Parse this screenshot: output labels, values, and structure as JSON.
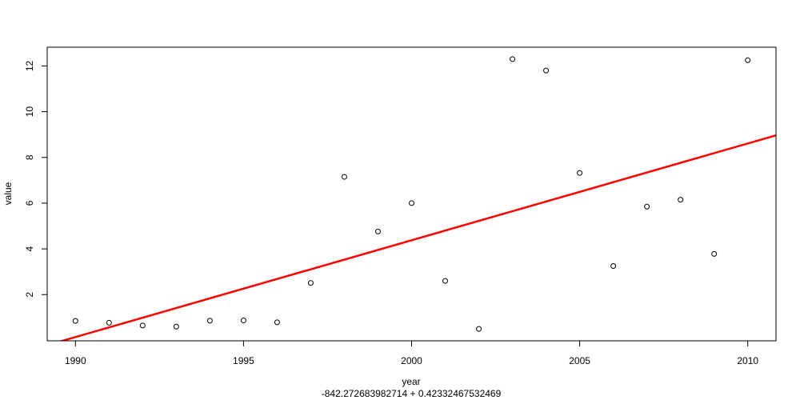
{
  "chart_data": {
    "type": "scatter",
    "title": "",
    "xlabel": "year",
    "ylabel": "value",
    "subtitle": "-842.272683982714 + 0.42332467532469",
    "xlim": [
      1989.16,
      2010.84
    ],
    "ylim": [
      -0.02,
      12.82
    ],
    "x_ticks": [
      1990,
      1995,
      2000,
      2005,
      2010
    ],
    "x_tick_labels": [
      "1990",
      "1995",
      "2000",
      "2005",
      "2010"
    ],
    "y_ticks": [
      2,
      4,
      6,
      8,
      10,
      12
    ],
    "y_tick_labels": [
      "2",
      "4",
      "6",
      "8",
      "10",
      "12"
    ],
    "grid": false,
    "series": [
      {
        "x": [
          1990,
          1991,
          1992,
          1993,
          1994,
          1995,
          1996,
          1997,
          1998,
          1999,
          2000,
          2001,
          2002,
          2003,
          2004,
          2005,
          2006,
          2007,
          2008,
          2009,
          2010
        ],
        "y": [
          0.85,
          0.77,
          0.65,
          0.6,
          0.86,
          0.87,
          0.79,
          2.51,
          7.15,
          4.76,
          6.0,
          2.6,
          0.5,
          12.3,
          11.8,
          7.32,
          3.25,
          5.85,
          6.15,
          3.78,
          12.25
        ],
        "color": "#000000",
        "marker": "open-circle"
      }
    ],
    "regression_line": {
      "intercept": -842.272683982714,
      "slope": 0.42332467532469,
      "color": "#ff0000"
    }
  }
}
